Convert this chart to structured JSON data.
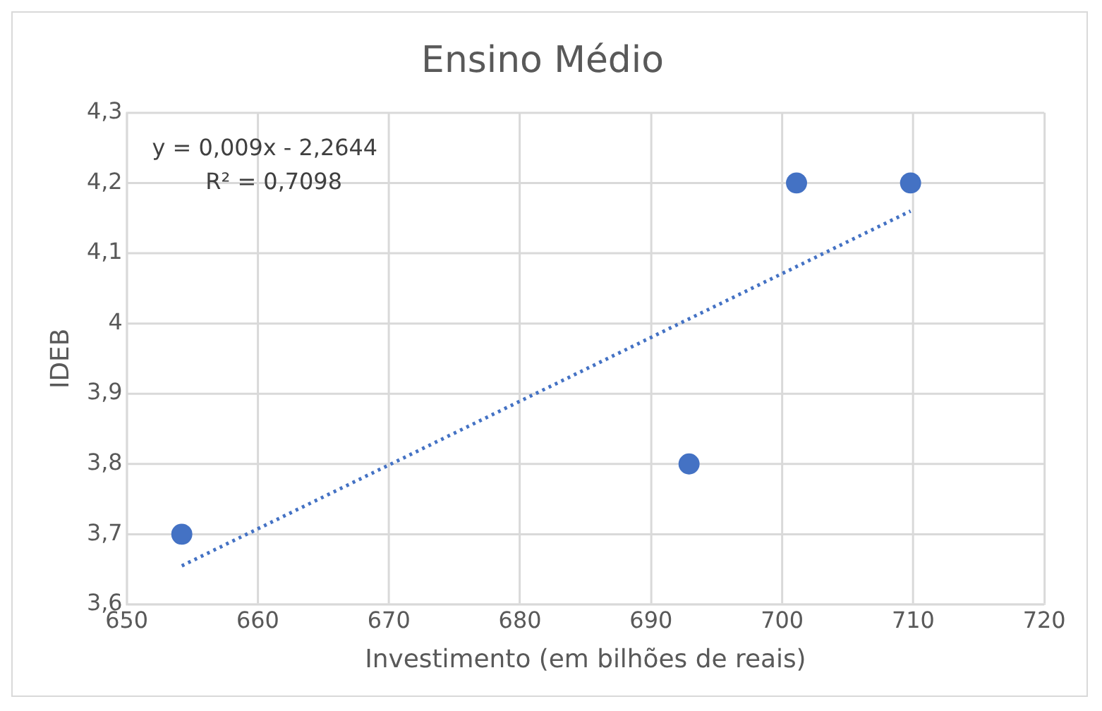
{
  "chart_data": {
    "type": "scatter",
    "title": "Ensino Médio",
    "xlabel": "Investimento (em bilhões de reais)",
    "ylabel": "IDEB",
    "x": [
      654.2,
      692.9,
      701.1,
      709.8
    ],
    "series": [
      {
        "color": "#4472c4",
        "values": [
          3.7,
          3.8,
          4.2,
          4.2
        ],
        "marker": "circle"
      },
      {
        "type": "line",
        "color": "#4472c4",
        "x": [
          654.2,
          709.8
        ],
        "values": [
          3.655,
          4.16
        ],
        "marker": "none",
        "line_style": "dotted"
      }
    ],
    "xlim": [
      650,
      720
    ],
    "xticks": [
      650,
      660,
      670,
      680,
      690,
      700,
      710,
      720
    ],
    "ylim": [
      3.6,
      4.3
    ],
    "yticks": [
      {
        "value": 3.6,
        "label": "3,6"
      },
      {
        "value": 3.7,
        "label": "3,7"
      },
      {
        "value": 3.8,
        "label": "3,8"
      },
      {
        "value": 3.9,
        "label": "3,9"
      },
      4,
      {
        "value": 4.1,
        "label": "4,1"
      },
      {
        "value": 4.2,
        "label": "4,2"
      },
      {
        "value": 4.3,
        "label": "4,3"
      }
    ],
    "grid": true,
    "legend": false,
    "annotations": [
      "y = 0,009x - 2,2644",
      "R² = 0,7098"
    ]
  }
}
